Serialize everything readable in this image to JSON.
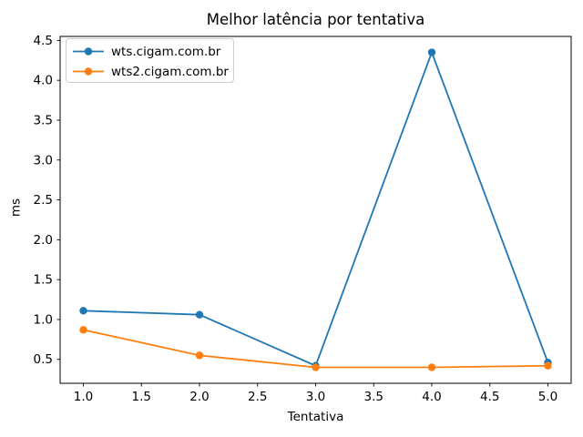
{
  "chart_data": {
    "type": "line",
    "title": "Melhor latência por tentativa",
    "xlabel": "Tentativa",
    "ylabel": "ms",
    "x": [
      1,
      2,
      3,
      4,
      5
    ],
    "series": [
      {
        "name": "wts.cigam.com.br",
        "color": "#1f77b4",
        "values": [
          1.11,
          1.06,
          0.42,
          4.35,
          0.46
        ]
      },
      {
        "name": "wts2.cigam.com.br",
        "color": "#ff7f0e",
        "values": [
          0.87,
          0.55,
          0.4,
          0.4,
          0.42
        ]
      }
    ],
    "xticks": [
      1.0,
      1.5,
      2.0,
      2.5,
      3.0,
      3.5,
      4.0,
      4.5,
      5.0
    ],
    "yticks": [
      0.5,
      1.0,
      1.5,
      2.0,
      2.5,
      3.0,
      3.5,
      4.0,
      4.5
    ],
    "xlim": [
      0.8,
      5.2
    ],
    "ylim": [
      0.2,
      4.55
    ],
    "grid": false,
    "legend_position": "upper left",
    "marker": "circle",
    "axis_color": "#000000",
    "legend_border_color": "#cccccc",
    "background_color": "#ffffff"
  }
}
